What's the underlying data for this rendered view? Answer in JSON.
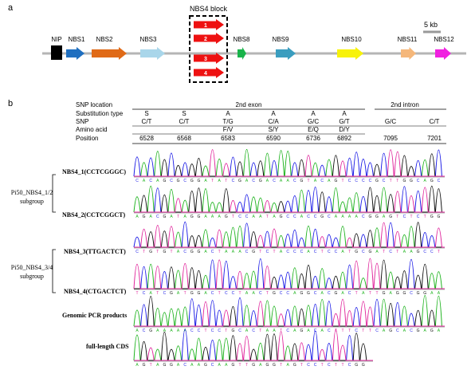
{
  "panel_a": {
    "label": "a",
    "block_label": "NBS4 block",
    "scale_label": "5 kb",
    "genes": [
      {
        "name": "NIP",
        "color": "#000000",
        "shape": "box"
      },
      {
        "name": "NBS1",
        "color": "#1f6fc0",
        "shape": "arrow"
      },
      {
        "name": "NBS2",
        "color": "#e06a17",
        "shape": "arrow"
      },
      {
        "name": "NBS3",
        "color": "#a9d6ea",
        "shape": "arrow"
      },
      {
        "name": "NBS8",
        "color": "#18b34a",
        "shape": "arrow"
      },
      {
        "name": "NBS9",
        "color": "#3a9dbf",
        "shape": "arrow"
      },
      {
        "name": "NBS10",
        "color": "#f7f20a",
        "shape": "arrow"
      },
      {
        "name": "NBS11",
        "color": "#f5b77a",
        "shape": "arrow"
      },
      {
        "name": "NBS12",
        "color": "#f020e0",
        "shape": "arrow"
      }
    ],
    "block_arrows": [
      "1",
      "2",
      "3",
      "4"
    ],
    "block_arrow_color": "#ee1111"
  },
  "panel_b": {
    "label": "b",
    "table": {
      "row_labels": [
        "SNP location",
        "Substitution type",
        "SNP",
        "Amino acid",
        "Position"
      ],
      "exon_header": "2nd exon",
      "intron_header": "2nd intron",
      "columns": [
        {
          "sub": "S",
          "snp": "C/T",
          "aa": "",
          "pos": "6528"
        },
        {
          "sub": "S",
          "snp": "C/T",
          "aa": "",
          "pos": "6568"
        },
        {
          "sub": "A",
          "snp": "T/G",
          "aa": "F/V",
          "pos": "6583"
        },
        {
          "sub": "A",
          "snp": "C/A",
          "aa": "S/Y",
          "pos": "6590"
        },
        {
          "sub": "A",
          "snp": "G/C",
          "aa": "E/Q",
          "pos": "6736"
        },
        {
          "sub": "A",
          "snp": "G/T",
          "aa": "D/Y",
          "pos": "6892"
        },
        {
          "sub": "",
          "snp": "G/C",
          "aa": "",
          "pos": "7095"
        },
        {
          "sub": "",
          "snp": "C/T",
          "aa": "",
          "pos": "7201"
        }
      ]
    },
    "traces": [
      {
        "label": "NBS4_1(CCTCGGGC)"
      },
      {
        "label": "NBS4_2(CCTCGGCT)"
      },
      {
        "label": "NBS4_3(TTGACTCT)"
      },
      {
        "label": "NBS4_4(CTGACTCT)"
      },
      {
        "label": "Genomic PCR products"
      },
      {
        "label": "full-length CDS"
      }
    ],
    "groups": [
      {
        "line1": "Pi50_NBS4_1/2",
        "line2": "subgroup"
      },
      {
        "line1": "Pi50_NBS4_3/4",
        "line2": "subgroup"
      }
    ],
    "trace_colors": {
      "A": "#1db31d",
      "C": "#1a1ae6",
      "G": "#111111",
      "T": "#e0249b"
    }
  }
}
